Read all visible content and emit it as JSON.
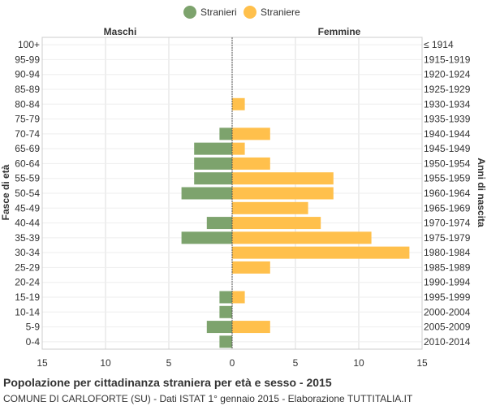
{
  "chart_data": {
    "type": "bar",
    "title": "Popolazione per cittadinanza straniera per età e sesso - 2015",
    "subtitle": "COMUNE DI CARLOFORTE (SU) - Dati ISTAT 1° gennaio 2015 - Elaborazione TUTTITALIA.IT",
    "left_header": "Maschi",
    "right_header": "Femmine",
    "ylabel_left": "Fasce di età",
    "ylabel_right": "Anni di nascita",
    "age_groups": [
      "100+",
      "95-99",
      "90-94",
      "85-89",
      "80-84",
      "75-79",
      "70-74",
      "65-69",
      "60-64",
      "55-59",
      "50-54",
      "45-49",
      "40-44",
      "35-39",
      "30-34",
      "25-29",
      "20-24",
      "15-19",
      "10-14",
      "5-9",
      "0-4"
    ],
    "birth_years": [
      "≤ 1914",
      "1915-1919",
      "1920-1924",
      "1925-1929",
      "1930-1934",
      "1935-1939",
      "1940-1944",
      "1945-1949",
      "1950-1954",
      "1955-1959",
      "1960-1964",
      "1965-1969",
      "1970-1974",
      "1975-1979",
      "1980-1984",
      "1985-1989",
      "1990-1994",
      "1995-1999",
      "2000-2004",
      "2005-2009",
      "2010-2014"
    ],
    "series": [
      {
        "name": "Stranieri",
        "color": "#7da36d",
        "side": "left",
        "values": [
          0,
          0,
          0,
          0,
          0,
          0,
          1,
          3,
          3,
          3,
          4,
          0,
          2,
          4,
          0,
          0,
          0,
          1,
          1,
          2,
          1
        ]
      },
      {
        "name": "Straniere",
        "color": "#ffc04c",
        "side": "right",
        "values": [
          0,
          0,
          0,
          0,
          1,
          0,
          3,
          1,
          3,
          8,
          8,
          6,
          7,
          11,
          14,
          3,
          0,
          1,
          0,
          3,
          0
        ]
      }
    ],
    "xlim": [
      -15,
      15
    ],
    "x_ticks": [
      -15,
      -10,
      -5,
      0,
      5,
      10,
      15
    ],
    "x_tick_labels": [
      "15",
      "10",
      "5",
      "0",
      "5",
      "10",
      "15"
    ],
    "grid": true,
    "legend_position": "top-center"
  }
}
